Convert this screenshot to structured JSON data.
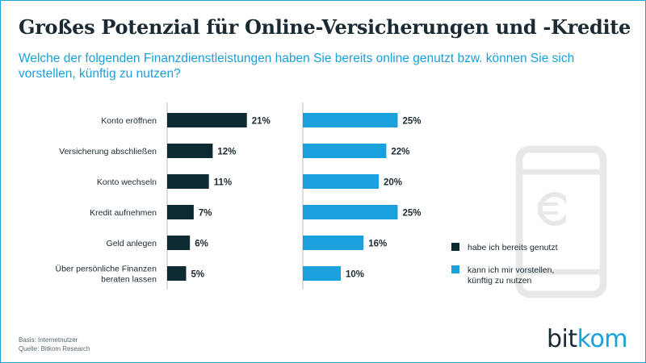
{
  "title": "Großes Potenzial für Online-Versicherungen und -Kredite",
  "subtitle": "Welche der folgenden Finanzdienstleistungen haben Sie bereits online genutzt bzw. können Sie sich vorstellen, künftig zu nutzen?",
  "footnote": {
    "line1": "Basis: Internetnutzer",
    "line2": "Quelle: Bitkom Research"
  },
  "logo": {
    "part1": "bit",
    "part2": "kom"
  },
  "colors": {
    "dark": "#0d2a33",
    "blue": "#1aa0db",
    "text": "#1b2a33",
    "axis": "#b5bcc0",
    "watermark": "#e8e8e8"
  },
  "icons": {
    "background": "smartphone-euro-icon"
  },
  "chart_data": {
    "type": "bar",
    "orientation": "horizontal",
    "categories": [
      [
        "Konto eröffnen"
      ],
      [
        "Versicherung abschließen"
      ],
      [
        "Konto wechseln"
      ],
      [
        "Kredit aufnehmen"
      ],
      [
        "Geld anlegen"
      ],
      [
        "Über persönliche Finanzen",
        "beraten lassen"
      ]
    ],
    "series": [
      {
        "name": "habe ich bereits genutzt",
        "legend": [
          "habe ich bereits genutzt"
        ],
        "values": [
          21,
          12,
          11,
          7,
          6,
          5
        ],
        "color": "#0d2a33"
      },
      {
        "name": "kann ich mir vorstellen, künftig zu nutzen",
        "legend": [
          "kann ich mir vorstellen,",
          "künftig zu nutzen"
        ],
        "values": [
          25,
          22,
          20,
          25,
          16,
          10
        ],
        "color": "#1aa0db"
      }
    ],
    "value_suffix": "%",
    "legend_position": "right",
    "grid": false
  }
}
